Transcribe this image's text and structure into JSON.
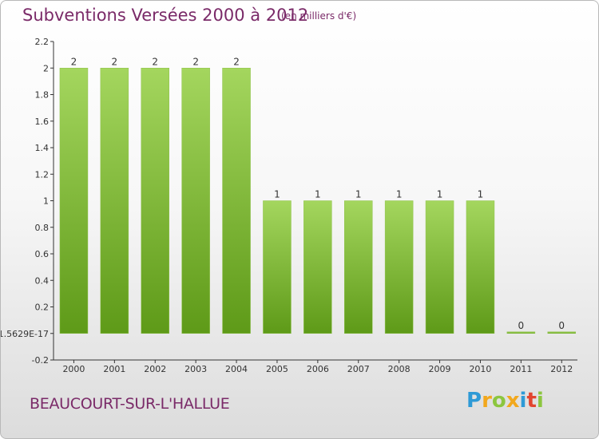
{
  "chart_data": {
    "type": "bar",
    "title": "Subventions Versées 2000 à 2012",
    "subtitle": "(en milliers d'€)",
    "categories": [
      "2000",
      "2001",
      "2002",
      "2003",
      "2004",
      "2005",
      "2006",
      "2007",
      "2008",
      "2009",
      "2010",
      "2011",
      "2012"
    ],
    "values": [
      2,
      2,
      2,
      2,
      2,
      1,
      1,
      1,
      1,
      1,
      1,
      0,
      0
    ],
    "data_labels": [
      "2",
      "2",
      "2",
      "2",
      "2",
      "1",
      "1",
      "1",
      "1",
      "1",
      "1",
      "0",
      "0"
    ],
    "ylim": [
      -0.2,
      2.2
    ],
    "yticks": [
      -0.2,
      0,
      0.2,
      0.4,
      0.6,
      0.8,
      1,
      1.2,
      1.4,
      1.6,
      1.8,
      2,
      2.2
    ],
    "ytick_labels": [
      "-0.2",
      "-1.5629E-17",
      "0.2",
      "0.4",
      "0.6",
      "0.8",
      "1",
      "1.2",
      "1.4",
      "1.6",
      "1.8",
      "2",
      "2.2"
    ],
    "xlabel": "",
    "ylabel": "",
    "grid": false,
    "bar_color_top": "#a4d65e",
    "bar_color_bottom": "#5e9a18"
  },
  "footer": {
    "commune": "BEAUCOURT-SUR-L'HALLUE"
  },
  "logo": {
    "text": "Proxiti",
    "letters": [
      "P",
      "r",
      "o",
      "x",
      "i",
      "t",
      "i"
    ],
    "colors": [
      "#2e9ad6",
      "#f2a81d",
      "#8cc63f",
      "#f2a81d",
      "#2e9ad6",
      "#e2452f",
      "#8cc63f"
    ]
  },
  "colors": {
    "title": "#7a2a68",
    "axis": "#333333"
  }
}
